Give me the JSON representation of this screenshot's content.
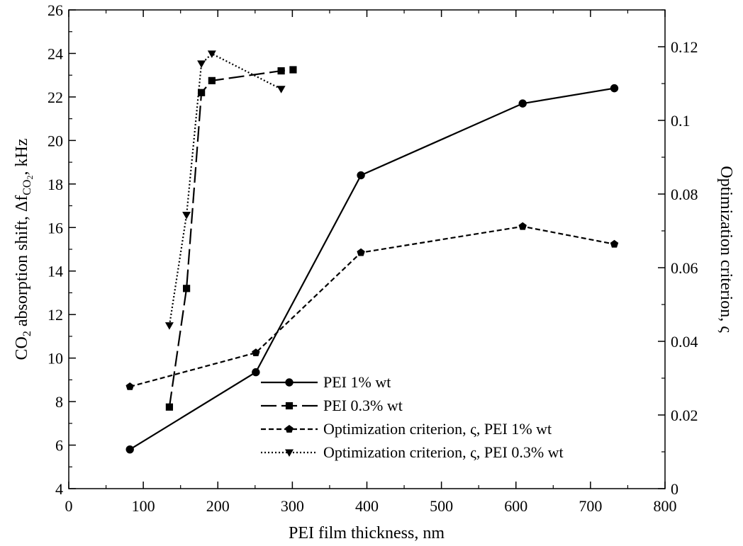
{
  "chart_data": {
    "type": "line",
    "xlabel": "PEI film thickness, nm",
    "ylabel_left": {
      "prefix": "CO",
      "prefix_sub": "2",
      "mid": " absorption shift, Δf",
      "mid_sub": "CO",
      "mid_subsub": "2",
      "suffix": ", kHz"
    },
    "ylabel_right": "Optimization criterion, ς",
    "xlim": [
      0,
      800
    ],
    "ylim_left": [
      4,
      26
    ],
    "ylim_right": [
      0,
      0.13
    ],
    "x_ticks": [
      "0",
      "100",
      "200",
      "300",
      "400",
      "500",
      "600",
      "700",
      "800"
    ],
    "x_tick_values": [
      0,
      100,
      200,
      300,
      400,
      500,
      600,
      700,
      800
    ],
    "y_left_ticks": [
      "4",
      "6",
      "8",
      "10",
      "12",
      "14",
      "16",
      "18",
      "20",
      "22",
      "24",
      "26"
    ],
    "y_left_tick_values": [
      4,
      6,
      8,
      10,
      12,
      14,
      16,
      18,
      20,
      22,
      24,
      26
    ],
    "y_right_ticks": [
      "0",
      "0.02",
      "0.04",
      "0.06",
      "0.08",
      "0.1",
      "0.12"
    ],
    "y_right_tick_values": [
      0,
      0.02,
      0.04,
      0.06,
      0.08,
      0.1,
      0.12
    ],
    "legend_position": "lower-right",
    "series": [
      {
        "name": "PEI 1% wt",
        "axis": "left",
        "marker": "circle",
        "dash": "solid",
        "x": [
          82,
          251,
          392,
          609,
          732
        ],
        "y": [
          5.8,
          9.35,
          18.4,
          21.7,
          22.4
        ]
      },
      {
        "name": "PEI 0.3% wt",
        "axis": "left",
        "marker": "square",
        "dash": "longdash",
        "x": [
          135,
          158,
          178,
          192,
          285,
          301
        ],
        "y": [
          7.75,
          13.2,
          22.2,
          22.75,
          23.2,
          23.25
        ]
      },
      {
        "name": "Optimization criterion, ς, PEI 1% wt",
        "axis": "right",
        "marker": "pentagon",
        "dash": "shortdash",
        "x": [
          82,
          251,
          392,
          609,
          732
        ],
        "y": [
          0.0277,
          0.0369,
          0.0641,
          0.0712,
          0.0664
        ]
      },
      {
        "name": "Optimization criterion, ς, PEI 0.3% wt",
        "axis": "right",
        "marker": "triangle-down",
        "dash": "dotted",
        "x": [
          135,
          158,
          178,
          192,
          285
        ],
        "y": [
          0.0443,
          0.0743,
          0.1154,
          0.1181,
          0.1085
        ]
      }
    ]
  }
}
